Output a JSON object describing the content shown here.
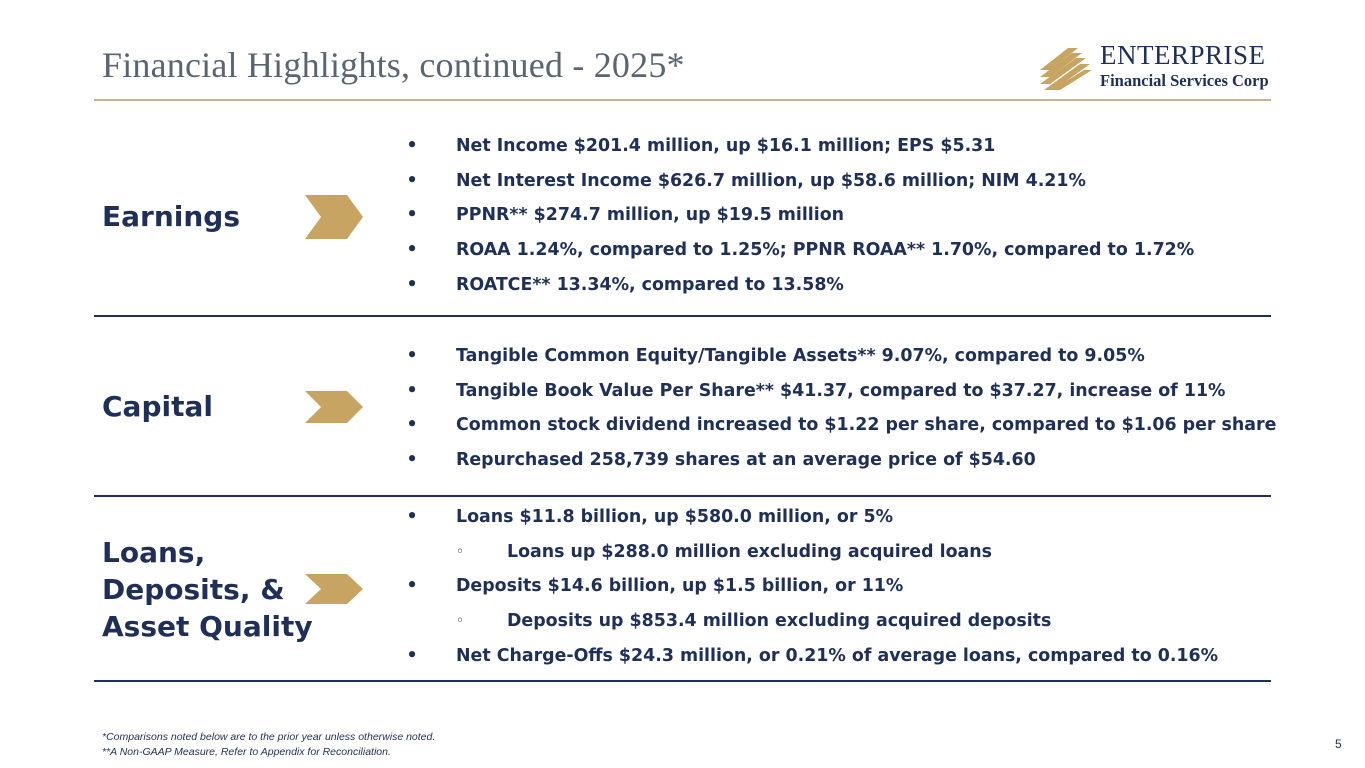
{
  "title": "Financial Highlights, continued - 2025*",
  "logo": {
    "name": "ENTERPRISE",
    "subtitle": "Financial Services Corp"
  },
  "colors": {
    "navy": "#1f2f57",
    "gold": "#c7a462",
    "title_gray": "#5a6472"
  },
  "sections": [
    {
      "label": "Earnings",
      "bullets": [
        "Net Income $201.4 million, up $16.1 million; EPS $5.31",
        "Net Interest Income $626.7 million, up $58.6 million; NIM 4.21%",
        "PPNR** $274.7 million, up $19.5 million",
        "ROAA 1.24%, compared to 1.25%; PPNR ROAA** 1.70%, compared to 1.72%",
        "ROATCE** 13.34%, compared to 13.58%"
      ]
    },
    {
      "label": "Capital",
      "bullets": [
        "Tangible Common Equity/Tangible Assets** 9.07%, compared to 9.05%",
        "Tangible Book Value Per Share** $41.37, compared to $37.27, increase of 11%",
        "Common stock dividend increased to $1.22 per share, compared to $1.06 per share",
        "Repurchased 258,739 shares at an average price of $54.60"
      ]
    },
    {
      "label_lines": [
        "Loans,",
        "Deposits, &",
        "Asset Quality"
      ],
      "bullets": [
        "Loans $11.8 billion, up $580.0 million, or 5%",
        "Loans up $288.0 million excluding acquired loans",
        "Deposits $14.6 billion, up $1.5 billion, or 11%",
        "Deposits up $853.4 million excluding acquired deposits",
        "Net Charge-Offs $24.3 million, or 0.21% of average loans, compared to 0.16%"
      ]
    }
  ],
  "bullet_marks": {
    "main": "•",
    "sub": "◦"
  },
  "footnotes": [
    "*Comparisons noted below are to the prior year unless otherwise noted.",
    "**A Non-GAAP Measure, Refer to Appendix for Reconciliation."
  ],
  "page_number": "5"
}
